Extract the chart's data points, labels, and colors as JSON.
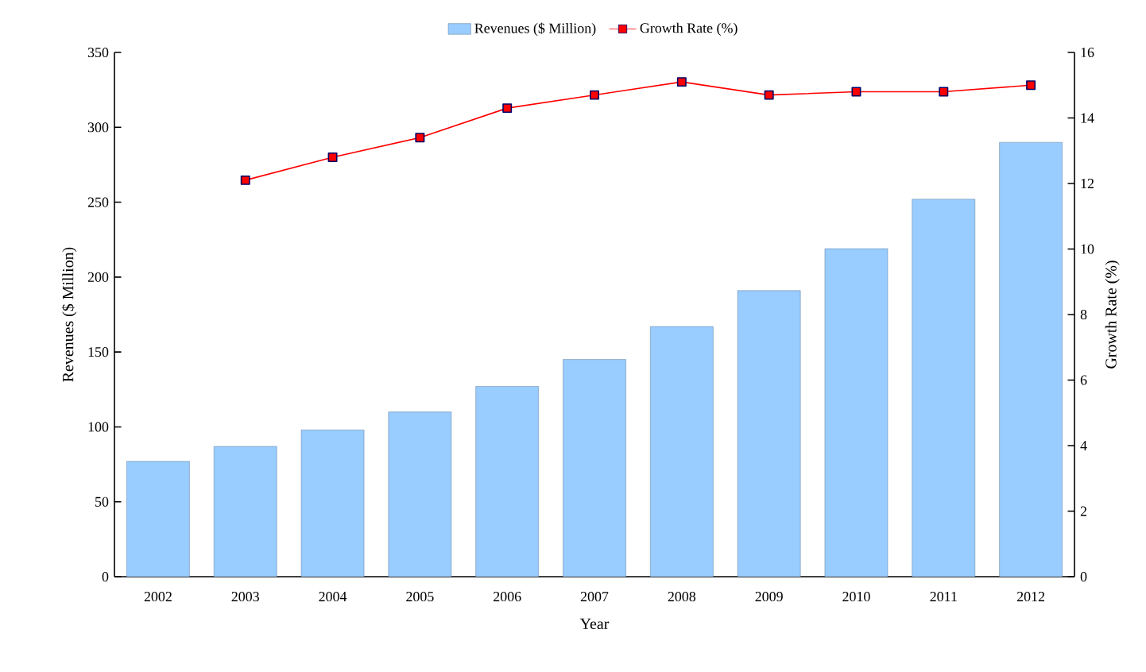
{
  "chart_data": {
    "type": "bar",
    "xlabel": "Year",
    "ylabel": "Revenues ($ Million)",
    "y2label": "Growth Rate (%)",
    "categories": [
      "2002",
      "2003",
      "2004",
      "2005",
      "2006",
      "2007",
      "2008",
      "2009",
      "2010",
      "2011",
      "2012"
    ],
    "series": [
      {
        "name": "Revenues ($ Million)",
        "color": "#99ccff",
        "values": [
          77,
          87,
          98,
          110,
          127,
          145,
          167,
          191,
          219,
          252,
          290
        ]
      },
      {
        "name": "Growth Rate (%)",
        "type": "line",
        "axis": "y2",
        "color": "#ff0000",
        "marker": "square",
        "values": [
          null,
          12.1,
          12.8,
          13.4,
          14.3,
          14.7,
          15.1,
          14.7,
          14.8,
          14.8,
          15.0
        ]
      }
    ],
    "ylim": [
      0,
      350
    ],
    "yticks": [
      0,
      50,
      100,
      150,
      200,
      250,
      300,
      350
    ],
    "y2lim": [
      0,
      16
    ],
    "y2ticks": [
      0,
      2,
      4,
      6,
      8,
      10,
      12,
      14,
      16
    ],
    "legend": "top",
    "grid": false
  }
}
